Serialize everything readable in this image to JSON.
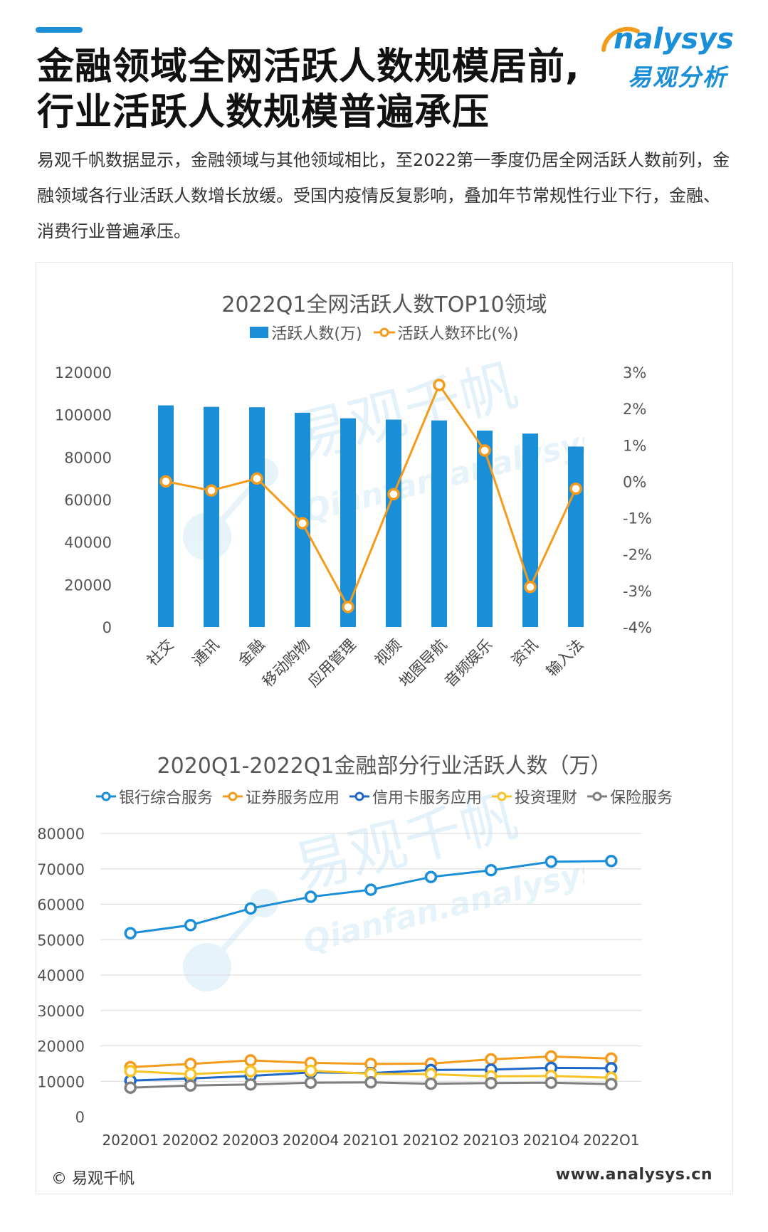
{
  "header": {
    "title_line1": "金融领域全网活跃人数规模居前,",
    "title_line2": "行业活跃人数规模普遍承压",
    "intro": "易观千帆数据显示，金融领域与其他领域相比，至2022第一季度仍居全网活跃人数前列，金融领域各行业活跃人数增长放缓。受国内疫情反复影响，叠加年节常规性行业下行，金融、消费行业普遍承压。"
  },
  "brand": {
    "name_en": "nalysys",
    "name_cn": "易观分析",
    "color": "#1a8fd8"
  },
  "watermark": {
    "text_cn": "易观千帆",
    "text_en": "Qianfan.analysys.cn"
  },
  "footer": {
    "copyright": "© 易观千帆",
    "website": "www.analysys.cn"
  },
  "chart_data": [
    {
      "type": "bar",
      "title": "2022Q1全网活跃人数TOP10领域",
      "categories": [
        "社交",
        "通讯",
        "金融",
        "移动购物",
        "应用管理",
        "视频",
        "地图导航",
        "音频娱乐",
        "资讯",
        "输入法"
      ],
      "series": [
        {
          "name": "活跃人数(万)",
          "type": "bar",
          "axis": "left",
          "color": "#1a8fd8",
          "values": [
            104400,
            103700,
            103500,
            100900,
            98300,
            97700,
            97300,
            92500,
            91100,
            85000
          ]
        },
        {
          "name": "活跃人数环比(%)",
          "type": "line",
          "axis": "right",
          "color": "#f59b1b",
          "values": [
            0.0,
            -0.25,
            0.08,
            -1.15,
            -3.45,
            -0.35,
            2.65,
            0.85,
            -2.9,
            -0.2
          ]
        }
      ],
      "ylim_left": [
        0,
        120000
      ],
      "yticks_left": [
        "0",
        "20000",
        "40000",
        "60000",
        "80000",
        "100000",
        "120000"
      ],
      "ylim_right": [
        -4,
        3
      ],
      "yticks_right": [
        "-4%",
        "-3%",
        "-2%",
        "-1%",
        "0%",
        "1%",
        "2%",
        "3%"
      ],
      "legend_position": "top",
      "grid": false
    },
    {
      "type": "line",
      "title": "2020Q1-2022Q1金融部分行业活跃人数（万）",
      "x": [
        "2020Q1",
        "2020Q2",
        "2020Q3",
        "2020Q4",
        "2021Q1",
        "2021Q2",
        "2021Q3",
        "2021Q4",
        "2022Q1"
      ],
      "series": [
        {
          "name": "银行综合服务",
          "color": "#1a8fd8",
          "values": [
            51800,
            54100,
            58800,
            62100,
            64100,
            67700,
            69600,
            72000,
            72200
          ]
        },
        {
          "name": "证券服务应用",
          "color": "#f59b1b",
          "values": [
            14000,
            14900,
            15900,
            15200,
            14900,
            15000,
            16200,
            17000,
            16400
          ]
        },
        {
          "name": "信用卡服务应用",
          "color": "#1f68c9",
          "values": [
            10200,
            10800,
            11500,
            12500,
            12300,
            13200,
            13300,
            13800,
            13700
          ]
        },
        {
          "name": "投资理财",
          "color": "#f7c325",
          "values": [
            12900,
            12000,
            12800,
            13000,
            12100,
            12000,
            11400,
            11500,
            11000
          ]
        },
        {
          "name": "保险服务",
          "color": "#7f7f7f",
          "values": [
            8200,
            8800,
            9100,
            9600,
            9700,
            9300,
            9500,
            9600,
            9200
          ]
        }
      ],
      "ylim": [
        0,
        80000
      ],
      "yticks": [
        "0",
        "10000",
        "20000",
        "30000",
        "40000",
        "50000",
        "60000",
        "70000",
        "80000"
      ],
      "legend_position": "top",
      "grid": true
    }
  ]
}
